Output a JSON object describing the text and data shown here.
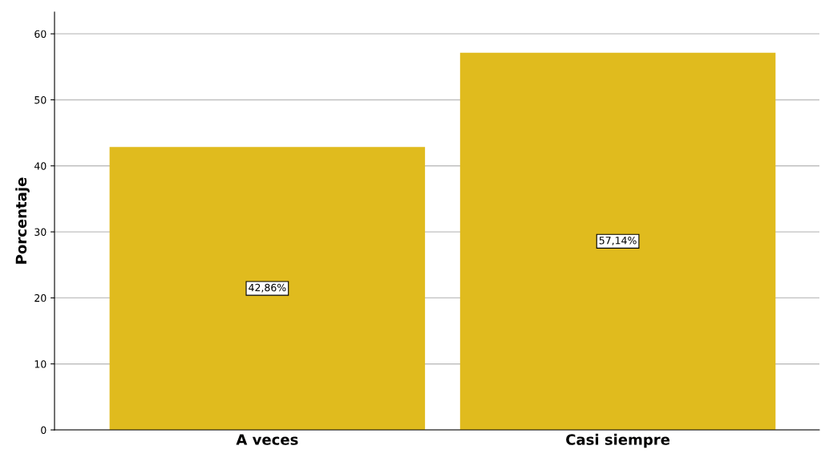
{
  "chart_data": {
    "type": "bar",
    "ylabel": "Porcentaje",
    "categories": [
      "A veces",
      "Casi siempre"
    ],
    "values": [
      42.86,
      57.14
    ],
    "value_labels": [
      "42,86%",
      "57,14%"
    ],
    "color": "#e0bb1e",
    "ylim": [
      0,
      63.3
    ],
    "yticks": [
      0,
      10,
      20,
      30,
      40,
      50,
      60
    ],
    "grid": "y"
  }
}
